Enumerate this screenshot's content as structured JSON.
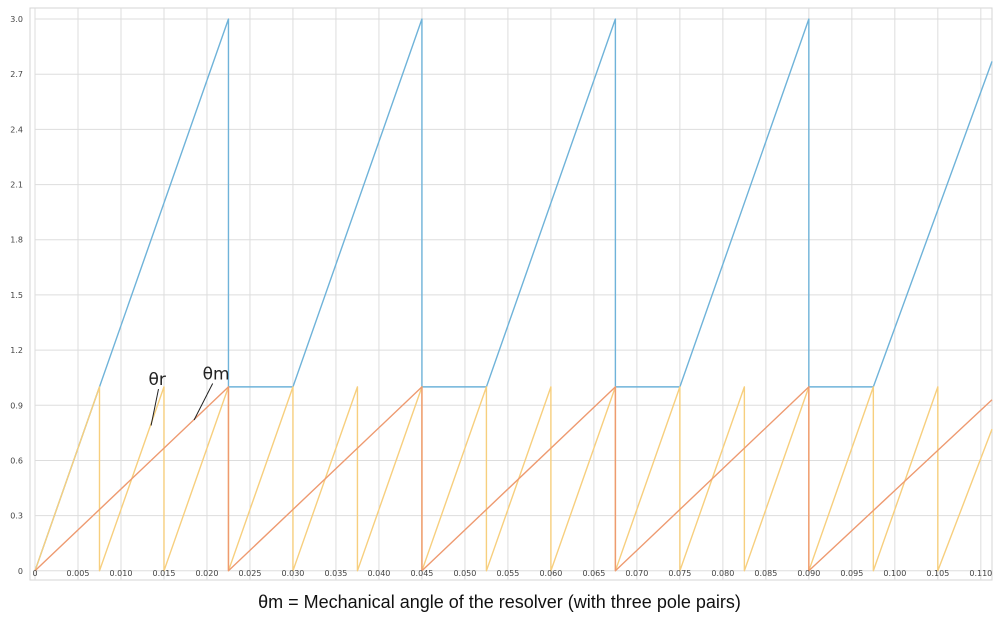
{
  "caption": "θm = Mechanical angle of the resolver (with three pole pairs)",
  "chart_data": {
    "type": "line",
    "title": "",
    "xlabel": "",
    "ylabel": "",
    "xlim": [
      0,
      0.1113
    ],
    "ylim": [
      -0.05,
      3.06
    ],
    "x_ticks": [
      0,
      0.005,
      0.01,
      0.015,
      0.02,
      0.025,
      0.03,
      0.035,
      0.04,
      0.045,
      0.05,
      0.055,
      0.06,
      0.065,
      0.07,
      0.075,
      0.08,
      0.085,
      0.09,
      0.095,
      0.1,
      0.105,
      0.11
    ],
    "x_tick_labels": [
      "0",
      "0.005",
      "0.010",
      "0.015",
      "0.020",
      "0.025",
      "0.030",
      "0.035",
      "0.040",
      "0.045",
      "0.050",
      "0.055",
      "0.060",
      "0.065",
      "0.070",
      "0.075",
      "0.080",
      "0.085",
      "0.090",
      "0.095",
      "0.100",
      "0.105",
      "0.110"
    ],
    "y_ticks": [
      0,
      0.3,
      0.6,
      0.9,
      1.2,
      1.5,
      1.8,
      2.1,
      2.4,
      2.7,
      3.0
    ],
    "y_tick_labels": [
      "0",
      "0.3",
      "0.6",
      "0.9",
      "1.2",
      "1.5",
      "1.8",
      "2.1",
      "2.4",
      "2.7",
      "3.0"
    ],
    "grid": true,
    "colors": {
      "grid": "#dddddd",
      "blue": "#6fb3d9",
      "orange": "#ee9a70",
      "yellow": "#f7cf7e"
    },
    "series": [
      {
        "name": "",
        "color": "#6fb3d9",
        "points": [
          [
            0,
            0
          ],
          [
            0.0075,
            1.0
          ],
          [
            0.0225,
            3.0
          ],
          [
            0.0225,
            1.0
          ],
          [
            0.03,
            1.0
          ],
          [
            0.045,
            3.0
          ],
          [
            0.045,
            1.0
          ],
          [
            0.0525,
            1.0
          ],
          [
            0.0675,
            3.0
          ],
          [
            0.0675,
            1.0
          ],
          [
            0.075,
            1.0
          ],
          [
            0.09,
            3.0
          ],
          [
            0.09,
            1.0
          ],
          [
            0.0975,
            1.0
          ],
          [
            0.1113,
            2.77
          ]
        ]
      },
      {
        "name": "θm",
        "color": "#ee9a70",
        "points": [
          [
            0,
            0
          ],
          [
            0.0225,
            1.0
          ],
          [
            0.0225,
            0
          ],
          [
            0.045,
            1.0
          ],
          [
            0.045,
            0
          ],
          [
            0.0675,
            1.0
          ],
          [
            0.0675,
            0
          ],
          [
            0.09,
            1.0
          ],
          [
            0.09,
            0
          ],
          [
            0.1113,
            0.93
          ]
        ]
      },
      {
        "name": "θr",
        "color": "#f7cf7e",
        "points": [
          [
            0,
            0
          ],
          [
            0.0075,
            1.0
          ],
          [
            0.0075,
            0
          ],
          [
            0.015,
            1.0
          ],
          [
            0.015,
            0
          ],
          [
            0.0225,
            1.0
          ],
          [
            0.0225,
            0
          ],
          [
            0.03,
            1.0
          ],
          [
            0.03,
            0
          ],
          [
            0.0375,
            1.0
          ],
          [
            0.0375,
            0
          ],
          [
            0.045,
            1.0
          ],
          [
            0.045,
            0
          ],
          [
            0.0525,
            1.0
          ],
          [
            0.0525,
            0
          ],
          [
            0.06,
            1.0
          ],
          [
            0.06,
            0
          ],
          [
            0.0675,
            1.0
          ],
          [
            0.0675,
            0
          ],
          [
            0.075,
            1.0
          ],
          [
            0.075,
            0
          ],
          [
            0.0825,
            1.0
          ],
          [
            0.0825,
            0
          ],
          [
            0.09,
            1.0
          ],
          [
            0.09,
            0
          ],
          [
            0.0975,
            1.0
          ],
          [
            0.0975,
            0
          ],
          [
            0.105,
            1.0
          ],
          [
            0.105,
            0
          ],
          [
            0.1113,
            0.77
          ]
        ]
      }
    ],
    "annotations": [
      {
        "text": "θr",
        "x": 0.0132,
        "y": 1.01,
        "target": [
          0.0135,
          0.79
        ]
      },
      {
        "text": "θm",
        "x": 0.0195,
        "y": 1.04,
        "target": [
          0.0185,
          0.82
        ]
      }
    ]
  }
}
